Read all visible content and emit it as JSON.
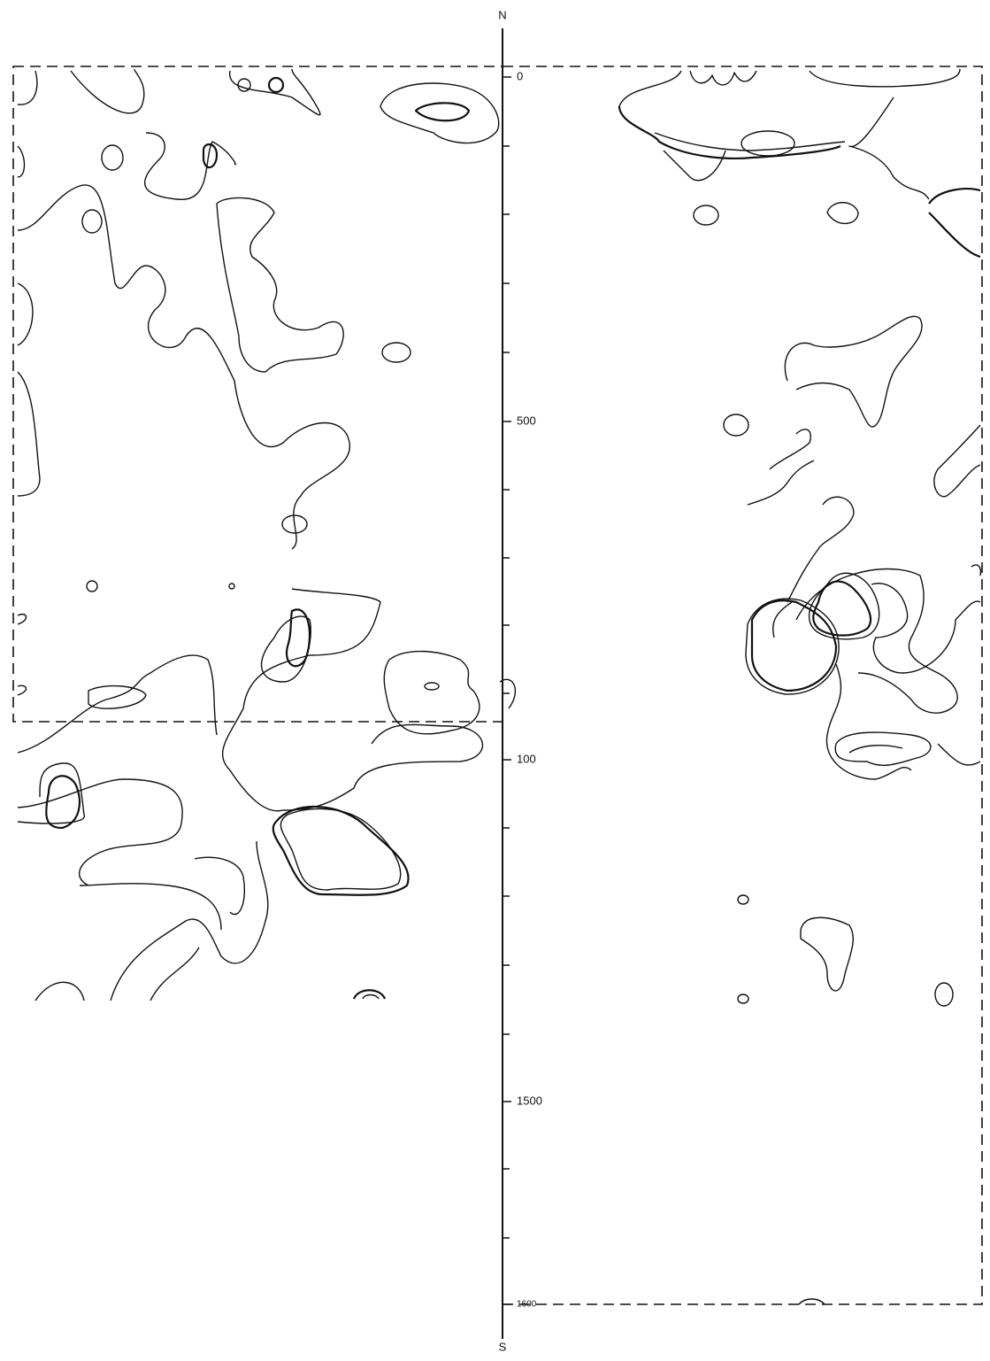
{
  "compass": {
    "north": "N",
    "south": "S"
  },
  "scale": {
    "labels": [
      "0",
      "500",
      "100",
      "1500",
      "1600"
    ]
  }
}
